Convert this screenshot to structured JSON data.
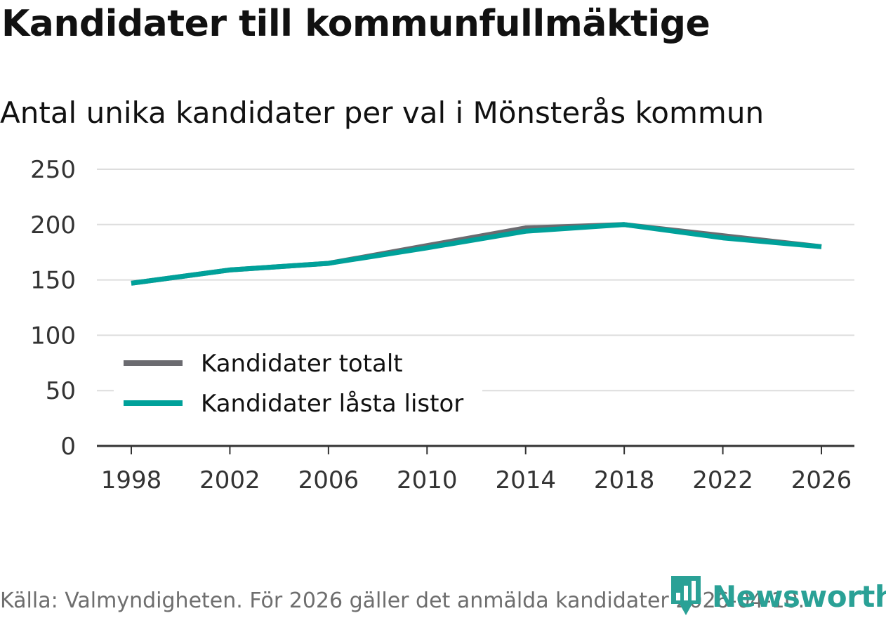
{
  "header": {
    "title": "Kandidater till kommunfullmäktige",
    "subtitle": "Antal unika kandidater per val i Mönsterås kommun"
  },
  "footer": {
    "source": "Källa: Valmyndigheten. För 2026 gäller det anmälda kandidater 2026-04-10.",
    "brand": "Newsworthy"
  },
  "colors": {
    "series_total": "#6b6b70",
    "series_locked": "#00a19a",
    "grid": "#dddddd",
    "axis": "#333333",
    "brand": "#2aa196"
  },
  "chart_data": {
    "type": "line",
    "title": "Kandidater till kommunfullmäktige",
    "subtitle": "Antal unika kandidater per val i Mönsterås kommun",
    "xlabel": "",
    "ylabel": "",
    "x": [
      1998,
      2002,
      2006,
      2010,
      2014,
      2018,
      2022,
      2026
    ],
    "x_tick_labels": [
      "1998",
      "2002",
      "2006",
      "2010",
      "2014",
      "2018",
      "2022",
      "2026"
    ],
    "ylim": [
      0,
      250
    ],
    "y_ticks": [
      0,
      50,
      100,
      150,
      200,
      250
    ],
    "y_tick_labels": [
      "0",
      "50",
      "100",
      "150",
      "200",
      "250"
    ],
    "grid": true,
    "legend_position": "bottom-left",
    "series": [
      {
        "name": "Kandidater totalt",
        "values": [
          147,
          159,
          165,
          181,
          197,
          200,
          190,
          180
        ]
      },
      {
        "name": "Kandidater låsta listor",
        "values": [
          147,
          159,
          165,
          179,
          194,
          200,
          188,
          180
        ]
      }
    ]
  }
}
